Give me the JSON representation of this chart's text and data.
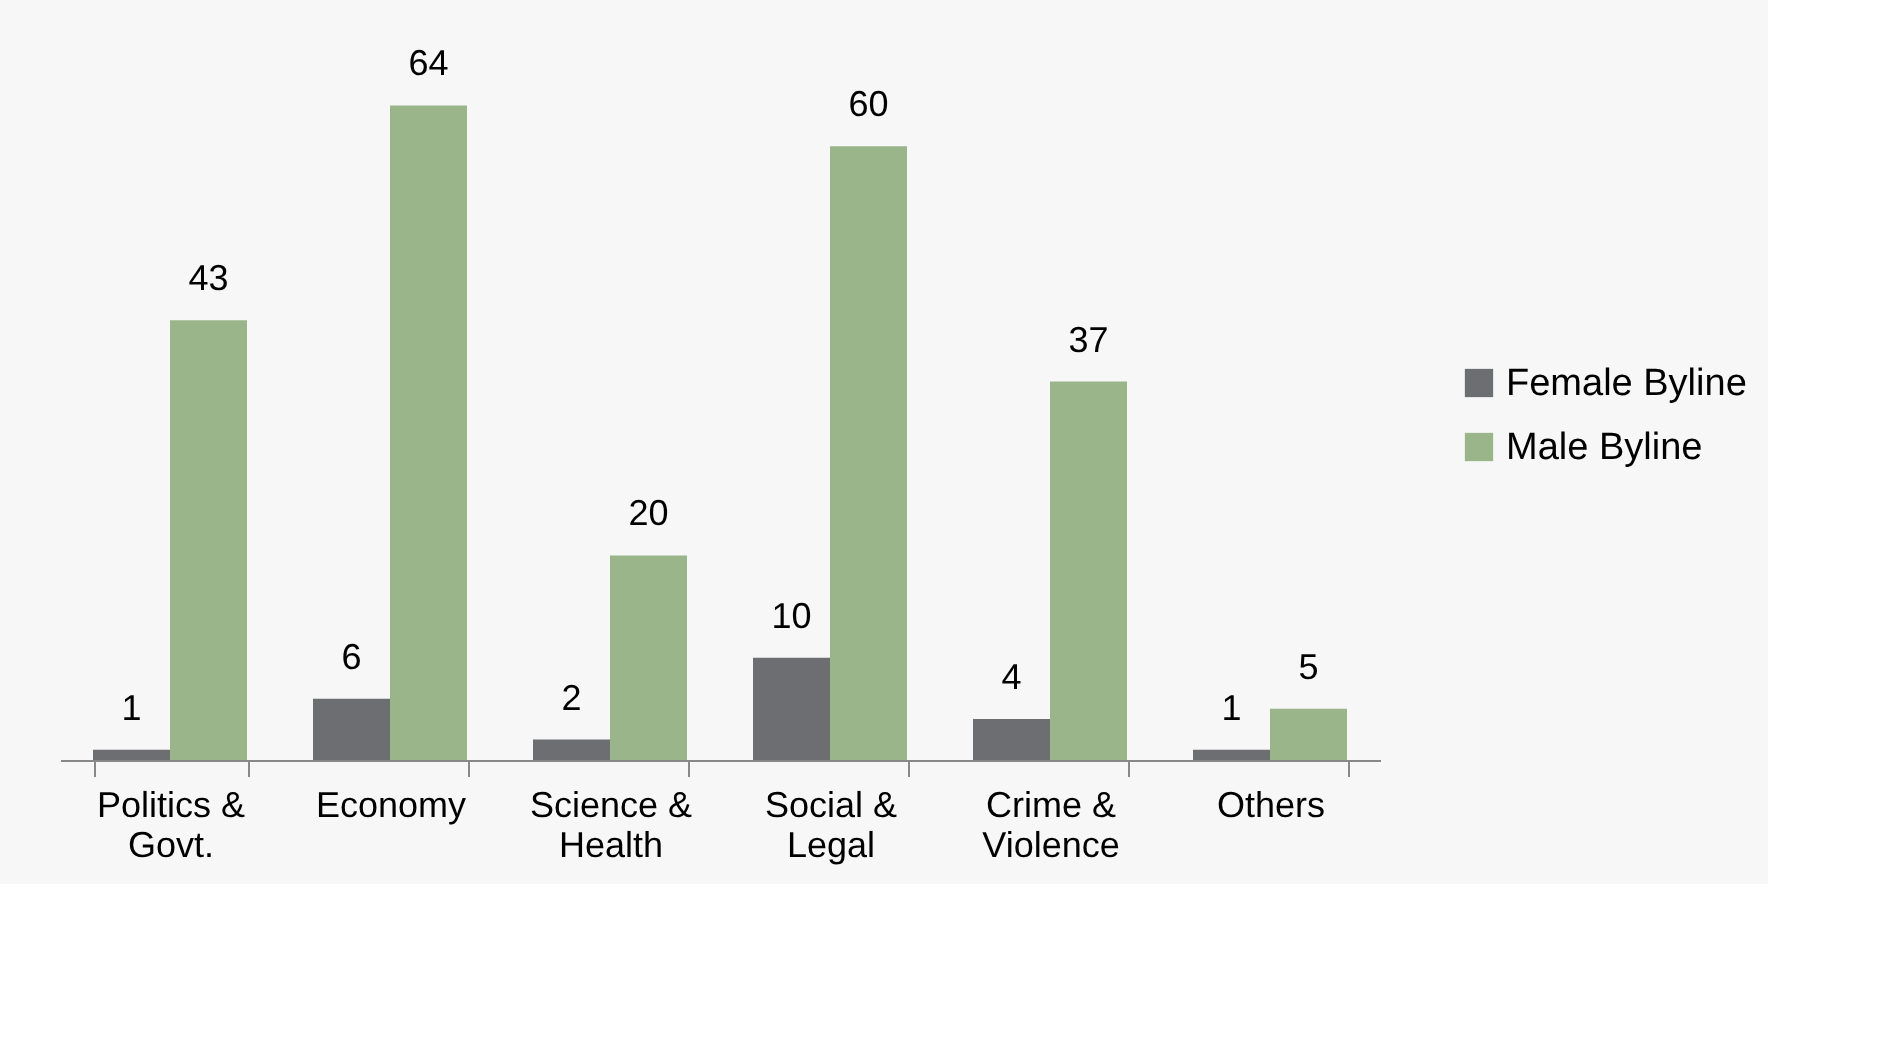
{
  "chart_data": {
    "type": "bar",
    "categories": [
      "Politics & Govt.",
      "Economy",
      "Science & Health",
      "Social & Legal",
      "Crime & Violence",
      "Others"
    ],
    "series": [
      {
        "name": "Female Byline",
        "color": "#6d6e71",
        "values": [
          1,
          6,
          2,
          10,
          4,
          1
        ]
      },
      {
        "name": "Male Byline",
        "color": "#9bb58a",
        "values": [
          43,
          64,
          20,
          60,
          37,
          5
        ]
      }
    ],
    "data_labels": true,
    "legend": "right",
    "grid": false
  }
}
